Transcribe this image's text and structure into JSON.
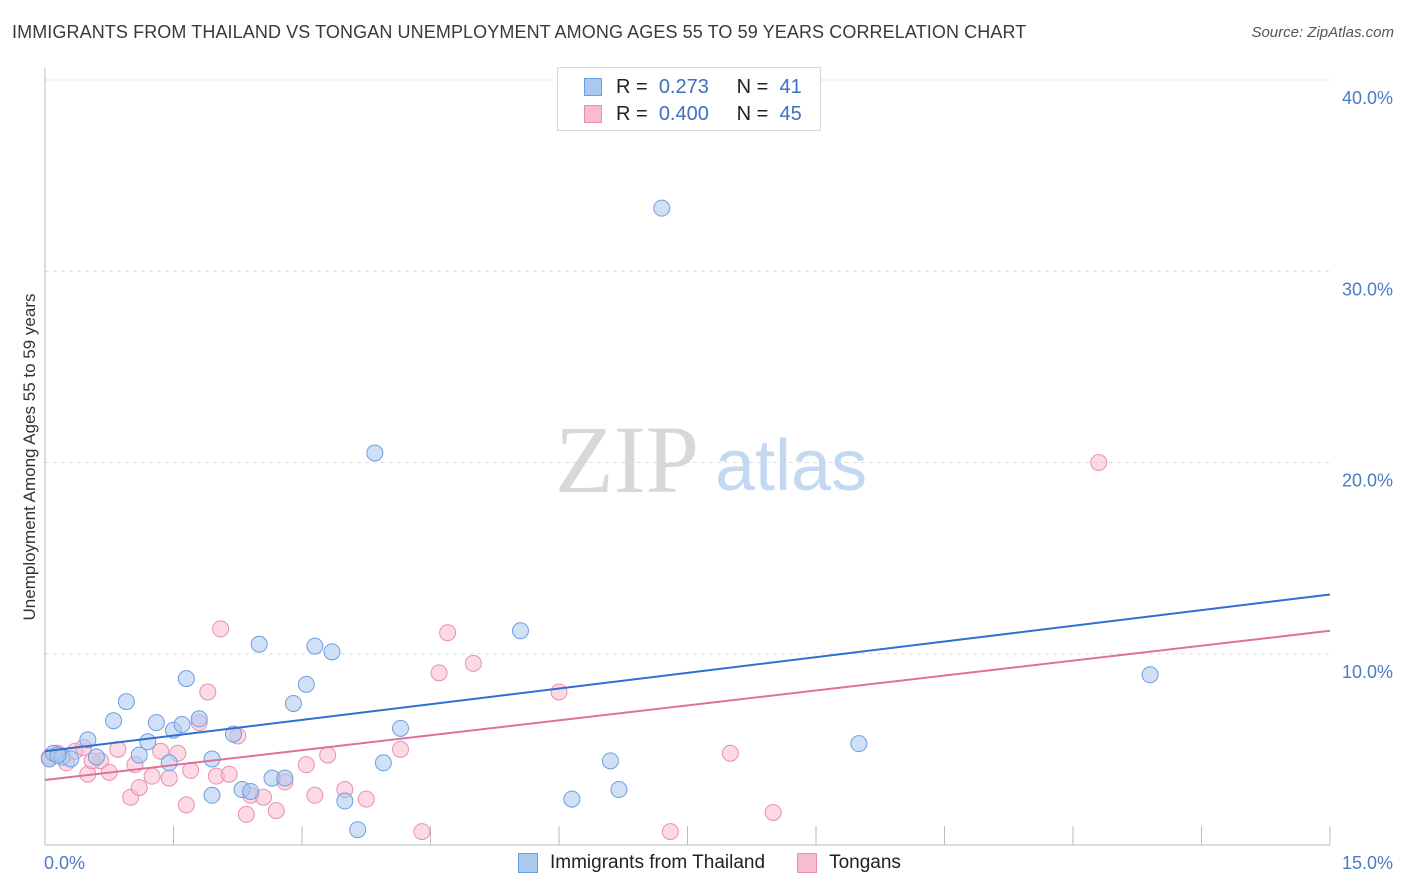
{
  "header": {
    "title": "IMMIGRANTS FROM THAILAND VS TONGAN UNEMPLOYMENT AMONG AGES 55 TO 59 YEARS CORRELATION CHART",
    "source": "Source: ZipAtlas.com"
  },
  "watermark": {
    "zip": "ZIP",
    "atlas": "atlas"
  },
  "legend": {
    "rows": [
      {
        "r_label": "R =",
        "r_value": "0.273",
        "n_label": "N =",
        "n_value": "41"
      },
      {
        "r_label": "R =",
        "r_value": "0.400",
        "n_label": "N =",
        "n_value": "45"
      }
    ]
  },
  "bottom_legend": {
    "items": [
      {
        "label": "Immigrants from Thailand"
      },
      {
        "label": "Tongans"
      }
    ]
  },
  "colors": {
    "blue_fill": "#aac8f0",
    "blue_stroke": "#6b9fe0",
    "blue_line": "#2f6fd0",
    "pink_fill": "#f8bcd0",
    "pink_stroke": "#ec8fb0",
    "pink_line": "#e0709a",
    "grid": "#dddddd",
    "tick_text": "#4a7cc4"
  },
  "chart_data": {
    "type": "scatter",
    "title": "IMMIGRANTS FROM THAILAND VS TONGAN UNEMPLOYMENT AMONG AGES 55 TO 59 YEARS CORRELATION CHART",
    "xlabel": "",
    "ylabel": "Unemployment Among Ages 55 to 59 years",
    "xlim": [
      0,
      15
    ],
    "ylim": [
      0,
      40
    ],
    "x_tick_labels": [
      "0.0%",
      "15.0%"
    ],
    "y_ticks": [
      10,
      20,
      30,
      40
    ],
    "y_tick_labels": [
      "10.0%",
      "20.0%",
      "30.0%",
      "40.0%"
    ],
    "grid": true,
    "legend_position": "top-center",
    "series": [
      {
        "name": "Immigrants from Thailand",
        "r": 0.273,
        "n": 41,
        "trend": {
          "x": [
            0,
            15
          ],
          "y": [
            4.9,
            13.1
          ]
        },
        "points": [
          [
            0.05,
            4.5
          ],
          [
            0.1,
            4.8
          ],
          [
            0.2,
            4.6
          ],
          [
            0.3,
            4.5
          ],
          [
            0.5,
            5.5
          ],
          [
            0.6,
            4.6
          ],
          [
            0.8,
            6.5
          ],
          [
            0.95,
            7.5
          ],
          [
            1.1,
            4.7
          ],
          [
            1.2,
            5.4
          ],
          [
            1.3,
            6.4
          ],
          [
            1.45,
            4.3
          ],
          [
            1.5,
            6.0
          ],
          [
            1.6,
            6.3
          ],
          [
            1.65,
            8.7
          ],
          [
            1.8,
            6.6
          ],
          [
            1.95,
            4.5
          ],
          [
            1.95,
            2.6
          ],
          [
            2.2,
            5.8
          ],
          [
            2.3,
            2.9
          ],
          [
            2.4,
            2.8
          ],
          [
            2.5,
            10.5
          ],
          [
            2.65,
            3.5
          ],
          [
            2.8,
            3.5
          ],
          [
            2.9,
            7.4
          ],
          [
            3.05,
            8.4
          ],
          [
            3.15,
            10.4
          ],
          [
            3.35,
            10.1
          ],
          [
            3.5,
            2.3
          ],
          [
            3.65,
            0.8
          ],
          [
            3.85,
            20.5
          ],
          [
            3.95,
            4.3
          ],
          [
            4.15,
            6.1
          ],
          [
            5.55,
            11.2
          ],
          [
            6.15,
            2.4
          ],
          [
            6.6,
            4.4
          ],
          [
            6.7,
            2.9
          ],
          [
            7.2,
            33.3
          ],
          [
            9.5,
            5.3
          ],
          [
            12.9,
            8.9
          ],
          [
            0.15,
            4.7
          ]
        ]
      },
      {
        "name": "Tongans",
        "r": 0.4,
        "n": 45,
        "trend": {
          "x": [
            0,
            15
          ],
          "y": [
            3.4,
            11.2
          ]
        },
        "points": [
          [
            0.05,
            4.6
          ],
          [
            0.15,
            4.8
          ],
          [
            0.25,
            4.3
          ],
          [
            0.35,
            4.9
          ],
          [
            0.45,
            5.1
          ],
          [
            0.5,
            3.7
          ],
          [
            0.65,
            4.4
          ],
          [
            0.75,
            3.8
          ],
          [
            0.85,
            5.0
          ],
          [
            1.0,
            2.5
          ],
          [
            1.05,
            4.2
          ],
          [
            1.1,
            3.0
          ],
          [
            1.25,
            3.6
          ],
          [
            1.35,
            4.9
          ],
          [
            1.45,
            3.5
          ],
          [
            1.55,
            4.8
          ],
          [
            1.65,
            2.1
          ],
          [
            1.7,
            3.9
          ],
          [
            1.8,
            6.4
          ],
          [
            1.9,
            8.0
          ],
          [
            2.0,
            3.6
          ],
          [
            2.05,
            11.3
          ],
          [
            2.15,
            3.7
          ],
          [
            2.25,
            5.7
          ],
          [
            2.35,
            1.6
          ],
          [
            2.4,
            2.6
          ],
          [
            2.55,
            2.5
          ],
          [
            2.7,
            1.8
          ],
          [
            2.8,
            3.3
          ],
          [
            3.05,
            4.2
          ],
          [
            3.15,
            2.6
          ],
          [
            3.3,
            4.7
          ],
          [
            3.5,
            2.9
          ],
          [
            3.75,
            2.4
          ],
          [
            4.15,
            5.0
          ],
          [
            4.4,
            0.7
          ],
          [
            4.6,
            9.0
          ],
          [
            4.7,
            11.1
          ],
          [
            5.0,
            9.5
          ],
          [
            6.0,
            8.0
          ],
          [
            7.3,
            0.7
          ],
          [
            8.0,
            4.8
          ],
          [
            8.5,
            1.7
          ],
          [
            12.3,
            20.0
          ],
          [
            0.55,
            4.4
          ]
        ]
      }
    ]
  }
}
